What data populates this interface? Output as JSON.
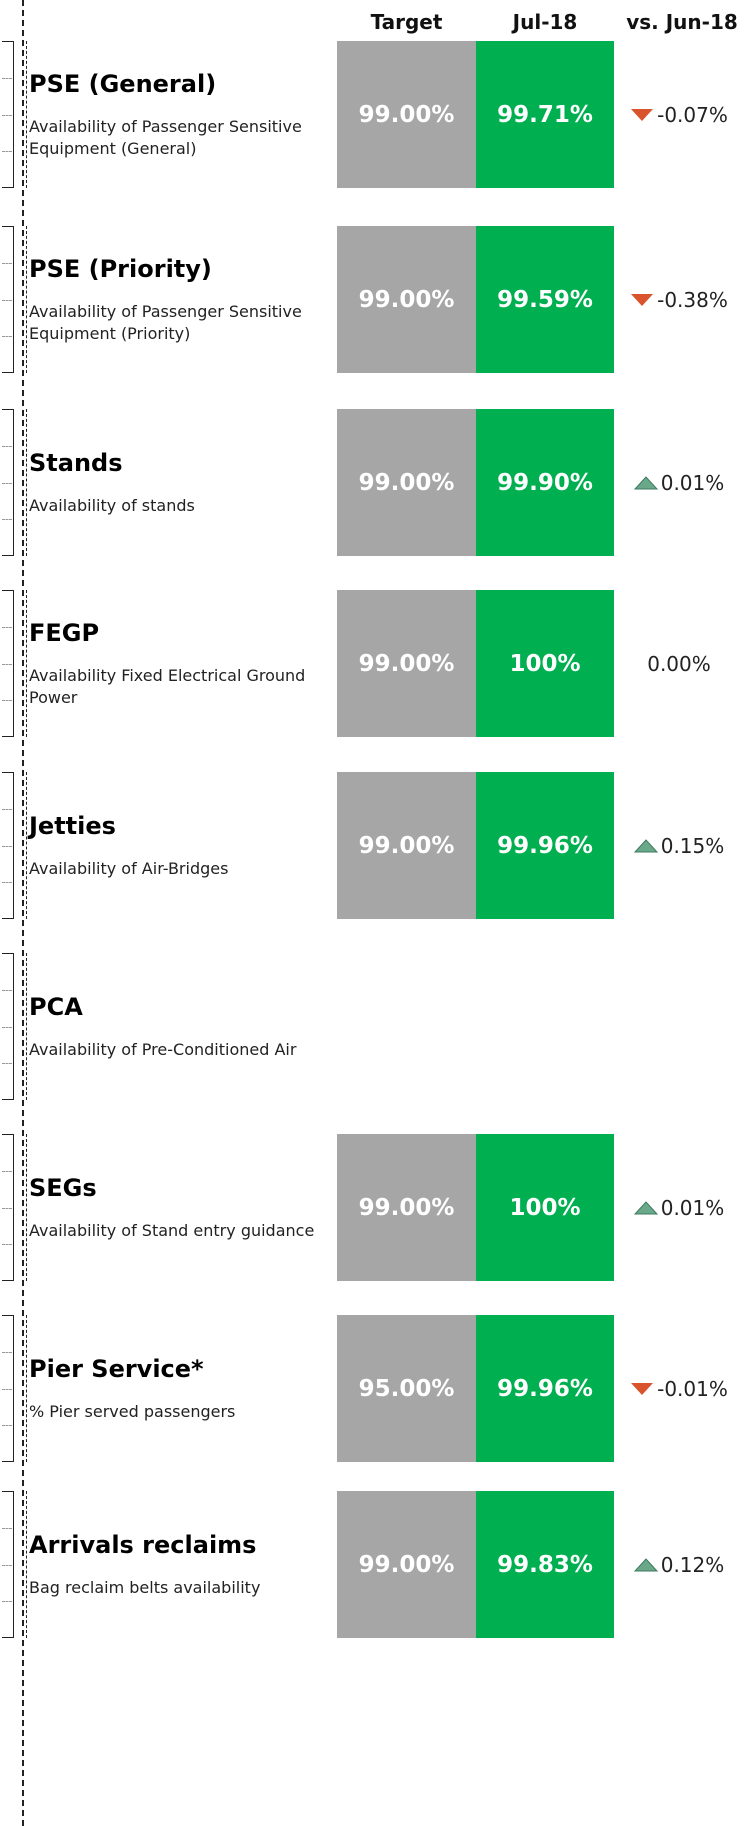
{
  "header": {
    "columns": [
      "Target",
      "Jul-18",
      "vs. Jun-18"
    ]
  },
  "rows": [
    {
      "name": "PSE (General)",
      "description": "Availability of Passenger Sensitive Equipment (General)",
      "target": "99.00%",
      "actual": "99.71%",
      "change": "-0.07%",
      "trend": "down"
    },
    {
      "name": "PSE (Priority)",
      "description": "Availability of Passenger Sensitive Equipment (Priority)",
      "target": "99.00%",
      "actual": "99.59%",
      "change": "-0.38%",
      "trend": "down"
    },
    {
      "name": "Stands",
      "description": "Availability of stands",
      "target": "99.00%",
      "actual": "99.90%",
      "change": "0.01%",
      "trend": "up"
    },
    {
      "name": "FEGP",
      "description": "Availability Fixed Electrical Ground Power",
      "target": "99.00%",
      "actual": "100%",
      "change": "0.00%",
      "trend": null
    },
    {
      "name": "Jetties",
      "description": "Availability of Air-Bridges",
      "target": "99.00%",
      "actual": "99.96%",
      "change": "0.15%",
      "trend": "up"
    },
    {
      "name": "PCA",
      "description": "Availability of Pre-Conditioned Air",
      "target": null,
      "actual": null,
      "change": null,
      "trend": null
    },
    {
      "name": "SEGs",
      "description": "Availability of Stand entry guidance",
      "target": "99.00%",
      "actual": "100%",
      "change": "0.01%",
      "trend": "up"
    },
    {
      "name": "Pier Service*",
      "description": "% Pier served passengers",
      "target": "95.00%",
      "actual": "99.96%",
      "change": "-0.01%",
      "trend": "down"
    },
    {
      "name": "Arrivals reclaims",
      "description": "Bag reclaim belts availability",
      "target": "99.00%",
      "actual": "99.83%",
      "change": "0.12%",
      "trend": "up"
    }
  ]
}
